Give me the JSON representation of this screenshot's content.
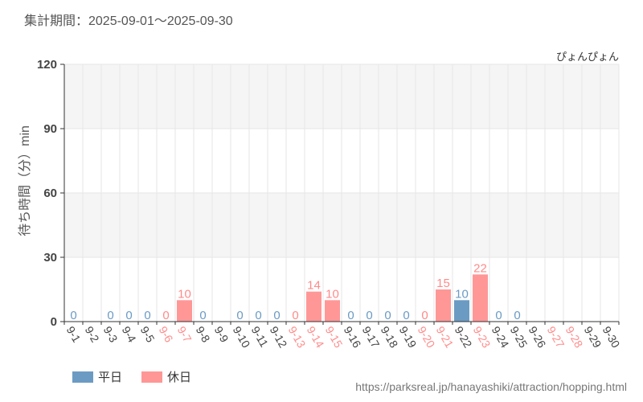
{
  "header": {
    "period": "集計期間：2025-09-01～2025-09-30"
  },
  "chart_data": {
    "type": "bar",
    "title": "ぴょんぴょん",
    "ylabel": "待ち時間（分）min",
    "ylim": [
      0,
      120
    ],
    "yticks": [
      0,
      30,
      60,
      90,
      120
    ],
    "grid": true,
    "legend_position": "bottom-left",
    "categories": [
      "9-1",
      "9-2",
      "9-3",
      "9-4",
      "9-5",
      "9-6",
      "9-7",
      "9-8",
      "9-9",
      "9-10",
      "9-11",
      "9-12",
      "9-13",
      "9-14",
      "9-15",
      "9-16",
      "9-17",
      "9-18",
      "9-19",
      "9-20",
      "9-21",
      "9-22",
      "9-23",
      "9-24",
      "9-25",
      "9-26",
      "9-27",
      "9-28",
      "9-29",
      "9-30"
    ],
    "values": [
      0,
      null,
      0,
      0,
      0,
      0,
      10,
      0,
      null,
      0,
      0,
      0,
      0,
      14,
      10,
      0,
      0,
      0,
      0,
      0,
      15,
      10,
      22,
      0,
      0,
      null,
      null,
      null,
      null,
      null
    ],
    "holiday": [
      false,
      false,
      false,
      false,
      false,
      true,
      true,
      false,
      false,
      false,
      false,
      false,
      true,
      true,
      true,
      false,
      false,
      false,
      false,
      true,
      true,
      false,
      true,
      false,
      false,
      false,
      true,
      true,
      false,
      false
    ],
    "series": [
      {
        "name": "平日",
        "color": "#6b9bc3"
      },
      {
        "name": "休日",
        "color": "#ff9797"
      }
    ]
  },
  "colors": {
    "weekday_label": "#6b9bc3",
    "holiday_label": "#ff8a8a",
    "weekday_tick": "#444444",
    "holiday_tick": "#ff8c8c",
    "band": "#f5f5f5",
    "grid": "#e6e6e6",
    "axis": "#333333"
  },
  "footer": {
    "url": "https://parksreal.jp/hanayashiki/attraction/hopping.html"
  }
}
